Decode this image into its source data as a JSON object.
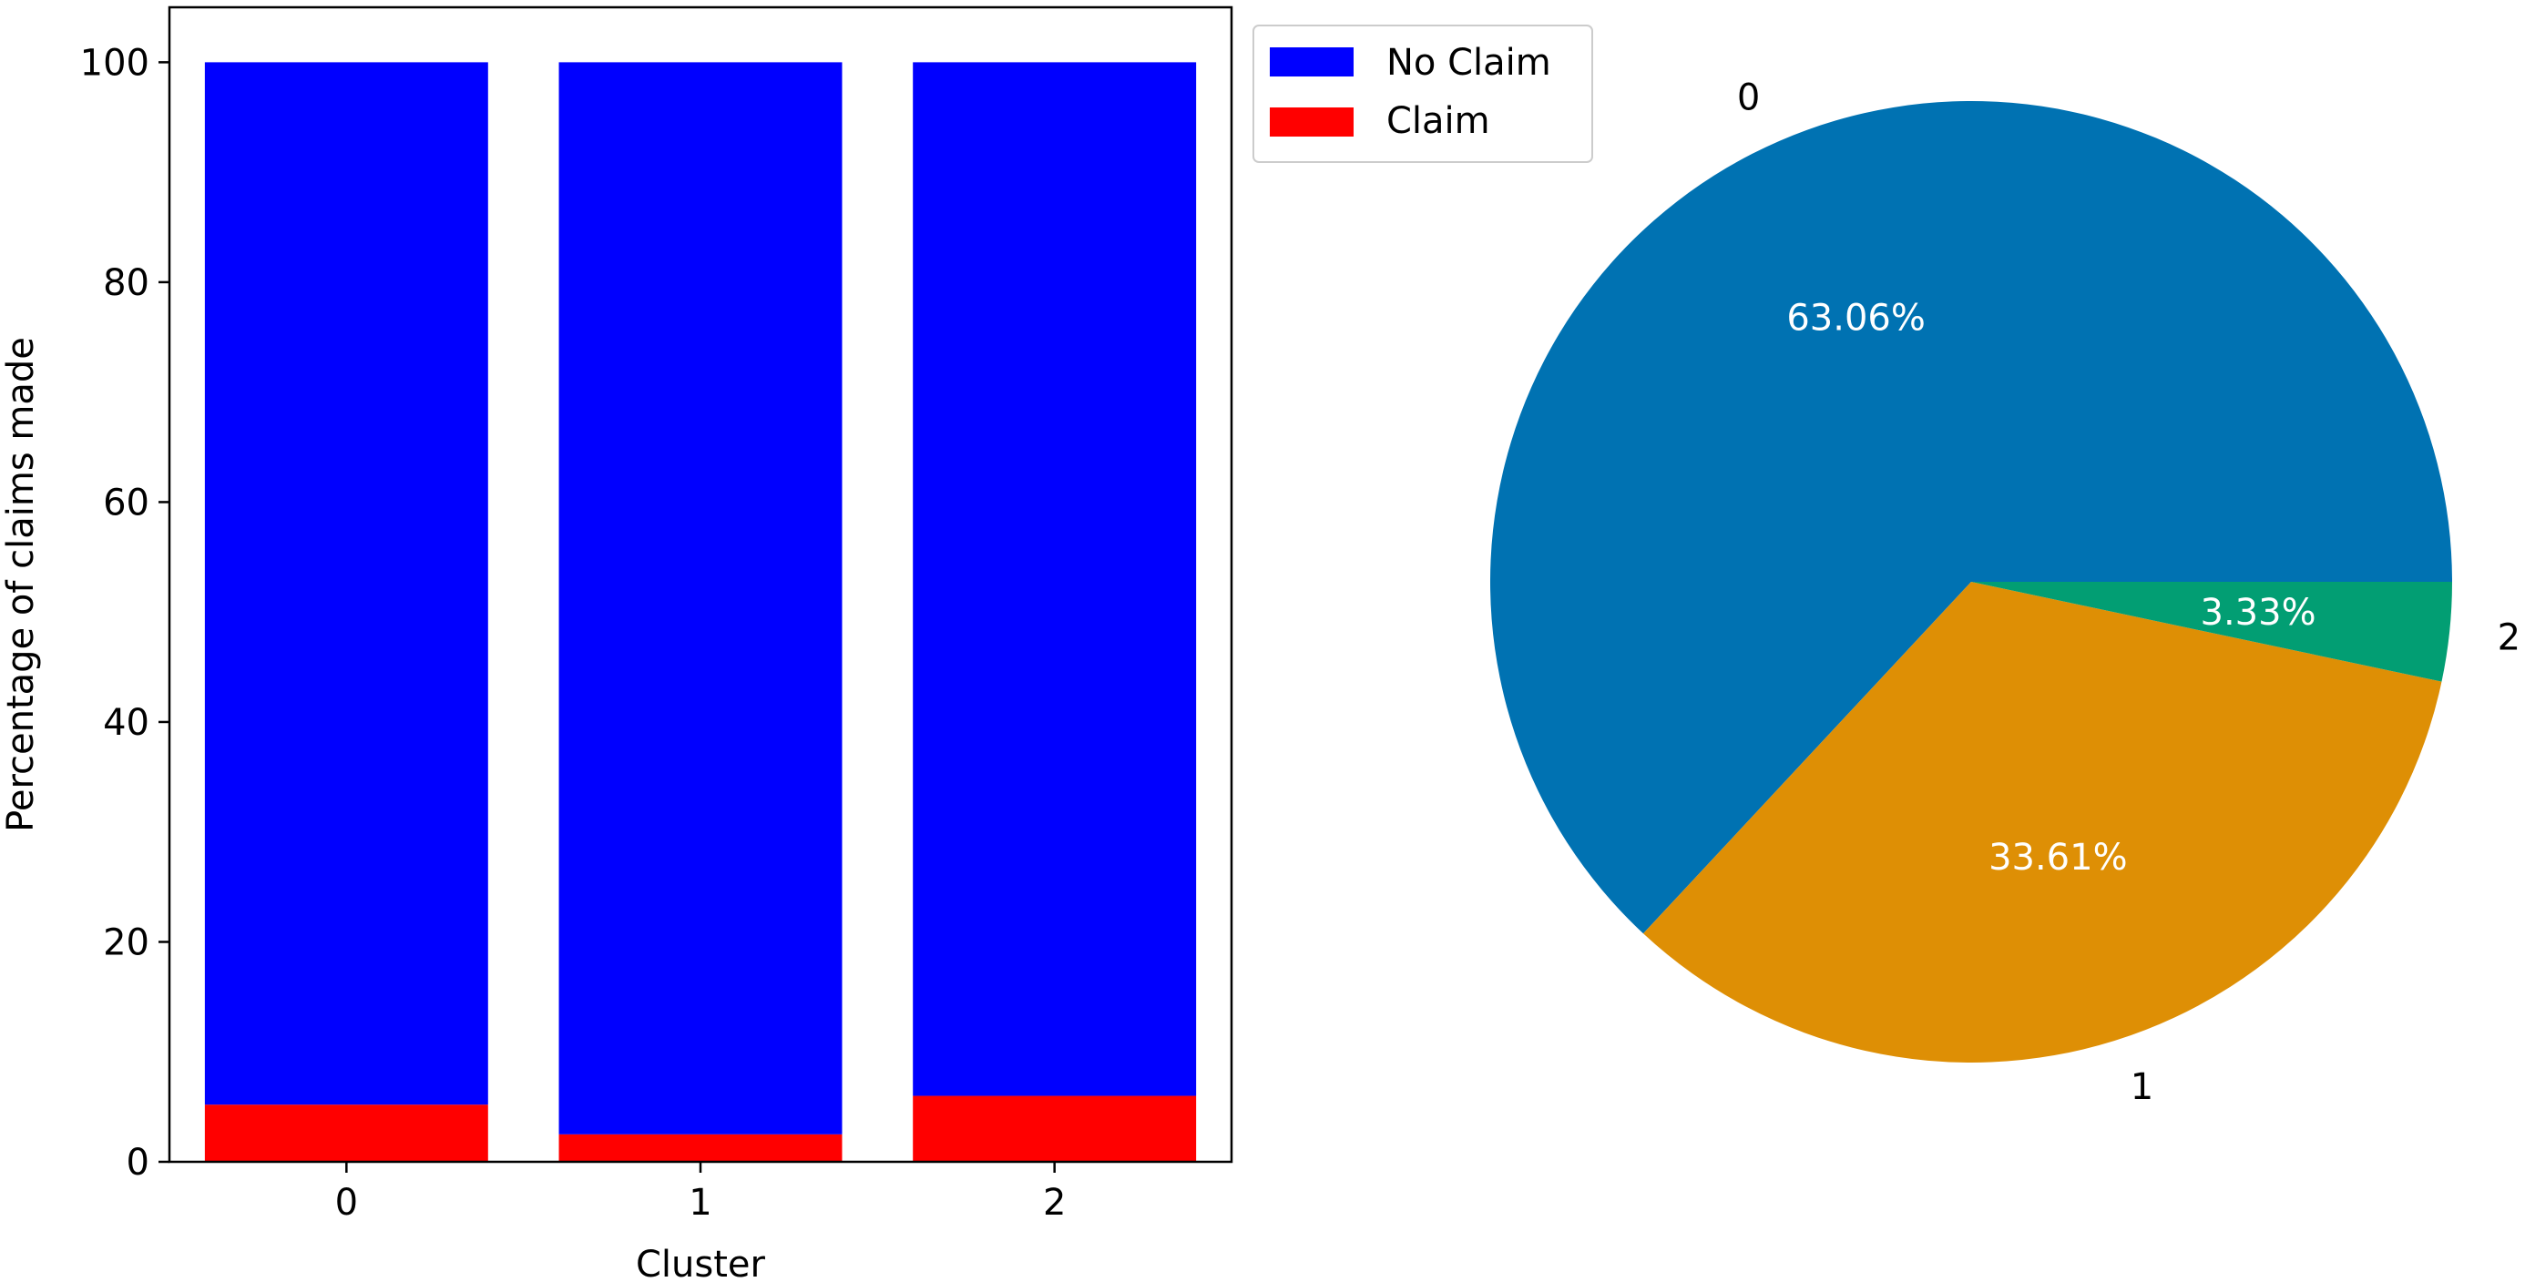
{
  "chart_data": [
    {
      "type": "bar",
      "stacked": true,
      "categories": [
        "0",
        "1",
        "2"
      ],
      "series": [
        {
          "name": "Claim",
          "values": [
            5.2,
            2.5,
            6.0
          ],
          "color": "#ff0000"
        },
        {
          "name": "No Claim",
          "values": [
            94.8,
            97.5,
            94.0
          ],
          "color": "#0000ff"
        }
      ],
      "xlabel": "Cluster",
      "ylabel": "Percentage of claims made",
      "ylim": [
        0,
        105
      ],
      "yticks": [
        "0",
        "20",
        "40",
        "60",
        "80",
        "100"
      ],
      "grid": false,
      "legend": {
        "placement": "outside-top-right",
        "entries": [
          "No Claim",
          "Claim"
        ]
      }
    },
    {
      "type": "pie",
      "labels": [
        "0",
        "1",
        "2"
      ],
      "values": [
        63.06,
        33.61,
        3.33
      ],
      "pct_labels": [
        "63.06%",
        "33.61%",
        "3.33%"
      ],
      "colors": [
        "#0072b2",
        "#de8f05",
        "#029e73"
      ]
    }
  ]
}
